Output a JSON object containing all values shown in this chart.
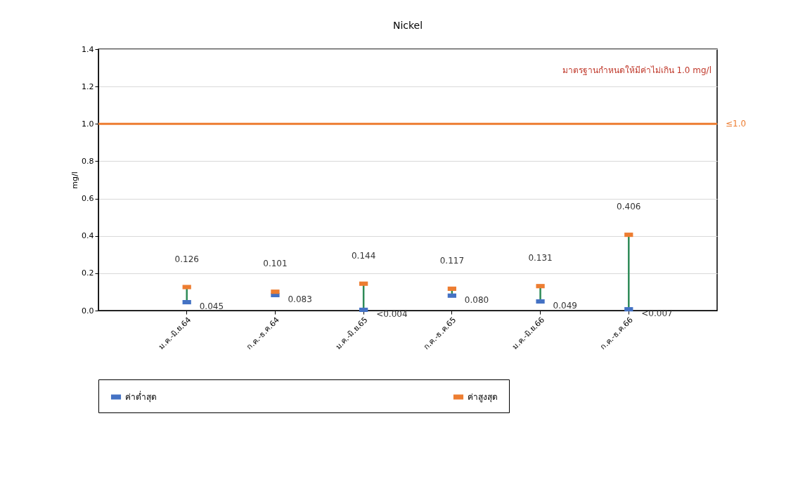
{
  "chart_data": {
    "type": "scatter",
    "title": "Nickel",
    "ylabel": "mg/l",
    "categories": [
      "ม.ค.-มิ.ย.64",
      "ก.ค.-ธ.ค.64",
      "ม.ค.-มิ.ย.65",
      "ก.ค.-ธ.ค.65",
      "ม.ค.-มิ.ย.66",
      "ก.ค.-ธ.ค.66"
    ],
    "series": [
      {
        "name": "ค่าต่ำสุด",
        "color": "#4472c4",
        "values": [
          0.045,
          0.083,
          0.004,
          0.08,
          0.049,
          0.007
        ],
        "value_labels": [
          "0.045",
          "0.083",
          "<0.004",
          "0.080",
          "0.049",
          "<0.007"
        ]
      },
      {
        "name": "ค่าสูงสุด",
        "color": "#ed7d31",
        "values": [
          0.126,
          0.101,
          0.144,
          0.117,
          0.131,
          0.406
        ],
        "value_labels": [
          "0.126",
          "0.101",
          "0.144",
          "0.117",
          "0.131",
          "0.406"
        ]
      }
    ],
    "ylim": [
      0,
      1.4
    ],
    "yticks": [
      {
        "value": 0,
        "label": "0.0"
      },
      0.2,
      0.4,
      0.6,
      0.8,
      {
        "value": 1,
        "label": "1.0"
      },
      1.2,
      1.4
    ],
    "ref_lines": [
      {
        "axis": "y",
        "value": 1.0,
        "label": "≤1.0",
        "color": "#ed7d31"
      }
    ],
    "annotations": [
      "มาตรฐานกำหนดให้มีค่าไม่เกิน 1.0 mg/l"
    ],
    "grid": "y",
    "legend": "bottom"
  }
}
